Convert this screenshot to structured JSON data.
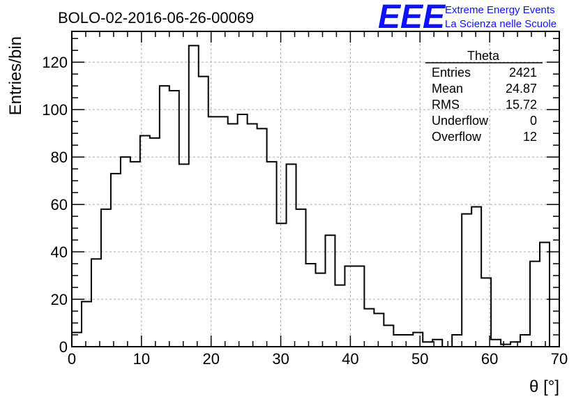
{
  "title": "BOLO-02-2016-06-26-00069",
  "logo": {
    "mark": "EEE",
    "line1": "Extreme Energy Events",
    "line2": "La Scienza nelle Scuole",
    "color": "#1010ff"
  },
  "stats": {
    "name": "Theta",
    "rows": [
      {
        "label": "Entries",
        "value": "2421"
      },
      {
        "label": "Mean",
        "value": "24.87"
      },
      {
        "label": "RMS",
        "value": "15.72"
      },
      {
        "label": "Underflow",
        "value": "0"
      },
      {
        "label": "Overflow",
        "value": "12"
      }
    ]
  },
  "chart_data": {
    "type": "bar",
    "histogram": true,
    "xlabel": "θ [°]",
    "ylabel": "Entries/bin",
    "xlim": [
      0,
      70
    ],
    "ylim": [
      0,
      133
    ],
    "grid": true,
    "bin_width": 1.4,
    "x_ticks": [
      0,
      10,
      20,
      30,
      40,
      50,
      60,
      70
    ],
    "y_ticks": [
      0,
      20,
      40,
      60,
      80,
      100,
      120
    ],
    "x_tick_labels": [
      "0",
      "10",
      "20",
      "30",
      "40",
      "50",
      "60",
      "70"
    ],
    "y_tick_labels": [
      "0",
      "20",
      "40",
      "60",
      "80",
      "100",
      "120"
    ],
    "values": [
      6,
      19,
      37,
      58,
      73,
      80,
      78,
      89,
      88,
      110,
      108,
      77,
      127,
      114,
      97,
      97,
      94,
      98,
      94,
      92,
      78,
      52,
      77,
      58,
      35,
      31,
      47,
      26,
      34,
      34,
      16,
      14,
      9,
      5,
      5,
      6,
      2,
      3,
      0,
      5,
      56,
      59,
      29,
      3,
      1,
      2,
      5,
      36,
      44,
      0
    ],
    "line_color": "#000000"
  }
}
